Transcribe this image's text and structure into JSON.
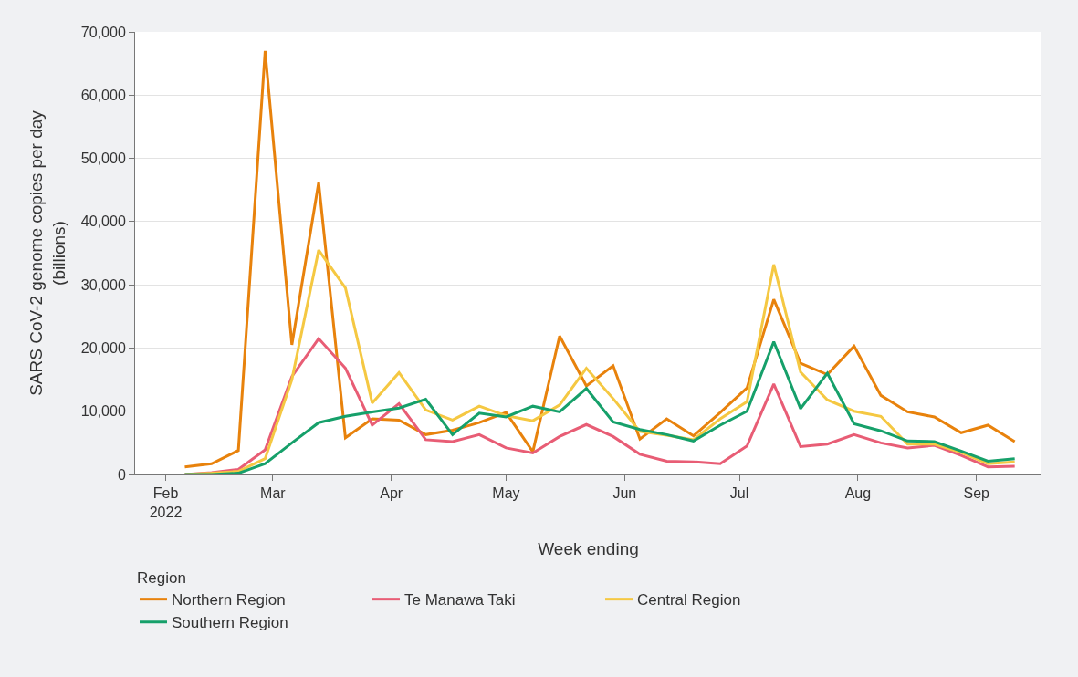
{
  "chart_data": {
    "type": "line",
    "xlabel": "Week ending",
    "ylabel": "SARS CoV-2 genome copies per day\n(billions)",
    "legend_title": "Region",
    "x": [
      "2022-02-06",
      "2022-02-13",
      "2022-02-20",
      "2022-02-27",
      "2022-03-06",
      "2022-03-13",
      "2022-03-20",
      "2022-03-27",
      "2022-04-03",
      "2022-04-10",
      "2022-04-17",
      "2022-04-24",
      "2022-05-01",
      "2022-05-08",
      "2022-05-15",
      "2022-05-22",
      "2022-05-29",
      "2022-06-05",
      "2022-06-12",
      "2022-06-19",
      "2022-06-26",
      "2022-07-03",
      "2022-07-10",
      "2022-07-17",
      "2022-07-24",
      "2022-07-31",
      "2022-08-07",
      "2022-08-14",
      "2022-08-21",
      "2022-08-28",
      "2022-09-04",
      "2022-09-11"
    ],
    "series": [
      {
        "name": "Northern Region",
        "color": "#e8820c",
        "values": [
          1200,
          1700,
          3800,
          67000,
          20500,
          46200,
          5800,
          8800,
          8600,
          6300,
          7000,
          8200,
          9800,
          3600,
          21900,
          14000,
          17200,
          5600,
          8800,
          6100,
          9800,
          13700,
          27700,
          17600,
          15800,
          20300,
          12500,
          9900,
          9100,
          6600,
          7800,
          5200
        ]
      },
      {
        "name": "Te Manawa Taki",
        "color": "#e85d75",
        "values": [
          0,
          300,
          800,
          3900,
          15500,
          21500,
          16800,
          7800,
          11200,
          5500,
          5200,
          6300,
          4200,
          3400,
          6000,
          7900,
          6000,
          3200,
          2100,
          2000,
          1700,
          4500,
          14300,
          4400,
          4800,
          6300,
          5000,
          4200,
          4600,
          3000,
          1200,
          1300
        ]
      },
      {
        "name": "Central Region",
        "color": "#f5c842",
        "values": [
          0,
          200,
          500,
          2500,
          15000,
          35500,
          29500,
          11300,
          16100,
          10200,
          8600,
          10800,
          9300,
          8500,
          11000,
          16800,
          12000,
          6800,
          6200,
          5500,
          8800,
          11500,
          33200,
          16200,
          11800,
          10000,
          9200,
          4800,
          4800,
          3500,
          1700,
          2000
        ]
      },
      {
        "name": "Southern Region",
        "color": "#16a06a",
        "values": [
          0,
          0,
          200,
          1700,
          5000,
          8200,
          9200,
          9900,
          10500,
          11900,
          6300,
          9700,
          9100,
          10800,
          9900,
          13600,
          8300,
          7100,
          6300,
          5300,
          7800,
          10000,
          21000,
          10400,
          16000,
          8000,
          6900,
          5300,
          5200,
          3700,
          2100,
          2500
        ]
      }
    ],
    "xlim": [
      "2022-01-24",
      "2022-09-18"
    ],
    "xticks": [
      {
        "value": "2022-02-01",
        "label": "Feb\n2022"
      },
      {
        "value": "2022-03-01",
        "label": "Mar"
      },
      {
        "value": "2022-04-01",
        "label": "Apr"
      },
      {
        "value": "2022-05-01",
        "label": "May"
      },
      {
        "value": "2022-06-01",
        "label": "Jun"
      },
      {
        "value": "2022-07-01",
        "label": "Jul"
      },
      {
        "value": "2022-08-01",
        "label": "Aug"
      },
      {
        "value": "2022-09-01",
        "label": "Sep"
      }
    ],
    "ylim": [
      0,
      70000
    ],
    "yticks": [
      {
        "value": 0,
        "label": "0"
      },
      {
        "value": 10000,
        "label": "10,000"
      },
      {
        "value": 20000,
        "label": "20,000"
      },
      {
        "value": 30000,
        "label": "30,000"
      },
      {
        "value": 40000,
        "label": "40,000"
      },
      {
        "value": 50000,
        "label": "50,000"
      },
      {
        "value": 60000,
        "label": "60,000"
      },
      {
        "value": 70000,
        "label": "70,000"
      }
    ],
    "grid": "y",
    "legend": "bottom left",
    "marker": "none",
    "line_style": "solid"
  }
}
